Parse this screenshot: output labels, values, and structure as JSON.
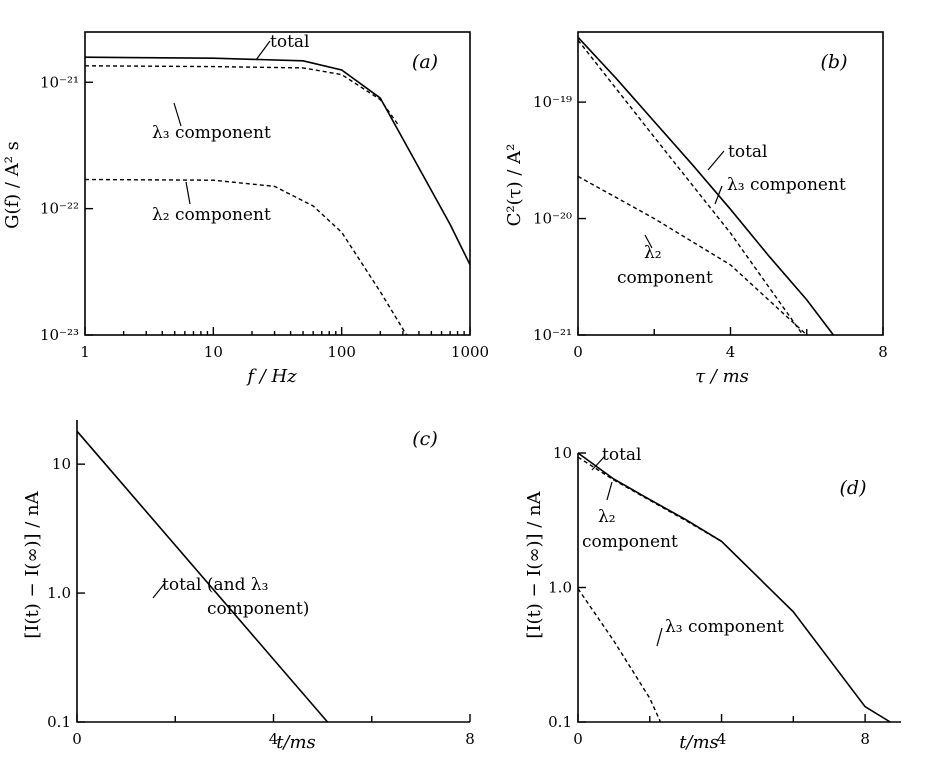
{
  "chart_data": [
    {
      "id": "a",
      "type": "line",
      "panel_label": "(a)",
      "xlabel": "f / Hz",
      "ylabel": "G(f) / A² s",
      "xscale": "log",
      "yscale": "log",
      "xlim": [
        1,
        1000
      ],
      "ylim": [
        1e-23,
        2.5e-21
      ],
      "xticks": [
        1,
        10,
        100,
        1000
      ],
      "xtick_labels": [
        "1",
        "10",
        "100",
        "1000"
      ],
      "yticks": [
        1e-23,
        1e-22,
        1e-21
      ],
      "ytick_labels": [
        "10⁻²³",
        "10⁻²²",
        "10⁻²¹"
      ],
      "series": [
        {
          "name": "total",
          "style": "solid",
          "points": [
            [
              1,
              1.58e-21
            ],
            [
              10,
              1.55e-21
            ],
            [
              50,
              1.48e-21
            ],
            [
              100,
              1.25e-21
            ],
            [
              200,
              7.5e-22
            ],
            [
              400,
              2.1e-22
            ],
            [
              700,
              7.5e-23
            ],
            [
              1000,
              3.6e-23
            ]
          ]
        },
        {
          "name": "λ3 component",
          "style": "dashed",
          "points": [
            [
              1,
              1.35e-21
            ],
            [
              10,
              1.33e-21
            ],
            [
              50,
              1.3e-21
            ],
            [
              100,
              1.15e-21
            ],
            [
              200,
              7.3e-22
            ],
            [
              280,
              4.5e-22
            ]
          ]
        },
        {
          "name": "λ2 component",
          "style": "dashed",
          "points": [
            [
              1,
              1.7e-22
            ],
            [
              10,
              1.68e-22
            ],
            [
              30,
              1.5e-22
            ],
            [
              60,
              1.05e-22
            ],
            [
              100,
              6.5e-23
            ],
            [
              200,
              2.2e-23
            ],
            [
              320,
              1e-23
            ]
          ]
        }
      ],
      "annotations": [
        {
          "text": "total"
        },
        {
          "text": "λ₃ component"
        },
        {
          "text": "λ₂ component"
        }
      ]
    },
    {
      "id": "b",
      "type": "line",
      "panel_label": "(b)",
      "xlabel": "τ / ms",
      "ylabel": "C²(τ) / A²",
      "xscale": "linear",
      "yscale": "log",
      "xlim": [
        0,
        8
      ],
      "ylim": [
        1e-21,
        4e-19
      ],
      "xticks": [
        0,
        4,
        8
      ],
      "xtick_labels": [
        "0",
        "4",
        "8"
      ],
      "xminor": [
        2,
        6
      ],
      "yticks": [
        1e-21,
        1e-20,
        1e-19
      ],
      "ytick_labels": [
        "10⁻²¹",
        "10⁻²⁰",
        "10⁻¹⁹"
      ],
      "series": [
        {
          "name": "total",
          "style": "solid",
          "points": [
            [
              0,
              3.6e-19
            ],
            [
              1,
              1.6e-19
            ],
            [
              2,
              6.8e-20
            ],
            [
              3,
              2.9e-20
            ],
            [
              4,
              1.2e-20
            ],
            [
              5,
              4.8e-21
            ],
            [
              6,
              2e-21
            ],
            [
              6.7,
              1e-21
            ]
          ]
        },
        {
          "name": "λ3 component",
          "style": "dashed",
          "points": [
            [
              0,
              3.4e-19
            ],
            [
              2,
              5e-20
            ],
            [
              4,
              7.5e-21
            ],
            [
              5.9,
              1e-21
            ]
          ]
        },
        {
          "name": "λ2 component",
          "style": "dashed",
          "points": [
            [
              0,
              2.3e-20
            ],
            [
              2,
              1e-20
            ],
            [
              4,
              4e-21
            ],
            [
              6,
              1e-21
            ]
          ]
        }
      ],
      "annotations": [
        {
          "text": "total"
        },
        {
          "text": "λ₃ component"
        },
        {
          "text": "λ₂"
        },
        {
          "text": "component"
        }
      ]
    },
    {
      "id": "c",
      "type": "line",
      "panel_label": "(c)",
      "xlabel": "t/ms",
      "ylabel": "[I(t) − I(∞)] / nA",
      "xscale": "linear",
      "yscale": "log",
      "xlim": [
        0,
        8
      ],
      "ylim": [
        0.1,
        22
      ],
      "xticks": [
        0,
        4,
        8
      ],
      "xtick_labels": [
        "0",
        "4",
        "8"
      ],
      "xminor": [
        2,
        6
      ],
      "yticks": [
        0.1,
        1.0,
        10
      ],
      "ytick_labels": [
        "0.1",
        "1.0",
        "10"
      ],
      "series": [
        {
          "name": "total (and λ3 component)",
          "style": "solid",
          "points": [
            [
              0,
              18
            ],
            [
              5.1,
              0.1
            ]
          ]
        }
      ],
      "annotations": [
        {
          "text": "total (and λ₃"
        },
        {
          "text": "component)"
        }
      ]
    },
    {
      "id": "d",
      "type": "line",
      "panel_label": "(d)",
      "xlabel": "t/ms",
      "ylabel": "[I(t) − I(∞)] / nA",
      "xscale": "linear",
      "yscale": "log",
      "xlim": [
        0,
        9
      ],
      "ylim": [
        0.1,
        10
      ],
      "xticks": [
        0,
        4,
        8
      ],
      "xtick_labels": [
        "0",
        "4",
        "8"
      ],
      "xminor": [
        2,
        6
      ],
      "yticks": [
        0.1,
        1.0,
        10
      ],
      "ytick_labels": [
        "0.1",
        "1.0",
        "10"
      ],
      "series": [
        {
          "name": "total",
          "style": "solid",
          "points": [
            [
              0,
              10
            ],
            [
              1,
              6.4
            ],
            [
              2,
              4.5
            ],
            [
              3,
              3.2
            ],
            [
              4,
              2.2
            ],
            [
              6,
              0.66
            ],
            [
              8,
              0.13
            ],
            [
              8.7,
              0.1
            ]
          ]
        },
        {
          "name": "λ2 component",
          "style": "dashed",
          "points": [
            [
              0,
              9.3
            ],
            [
              1,
              6.3
            ],
            [
              2,
              4.45
            ],
            [
              3,
              3.15
            ],
            [
              4,
              2.2
            ]
          ]
        },
        {
          "name": "λ3 component",
          "style": "dashed",
          "points": [
            [
              0,
              0.98
            ],
            [
              1,
              0.4
            ],
            [
              2,
              0.15
            ],
            [
              2.3,
              0.1
            ]
          ]
        }
      ],
      "annotations": [
        {
          "text": "total"
        },
        {
          "text": "λ₂"
        },
        {
          "text": "component"
        },
        {
          "text": "λ₃ component"
        }
      ]
    }
  ]
}
